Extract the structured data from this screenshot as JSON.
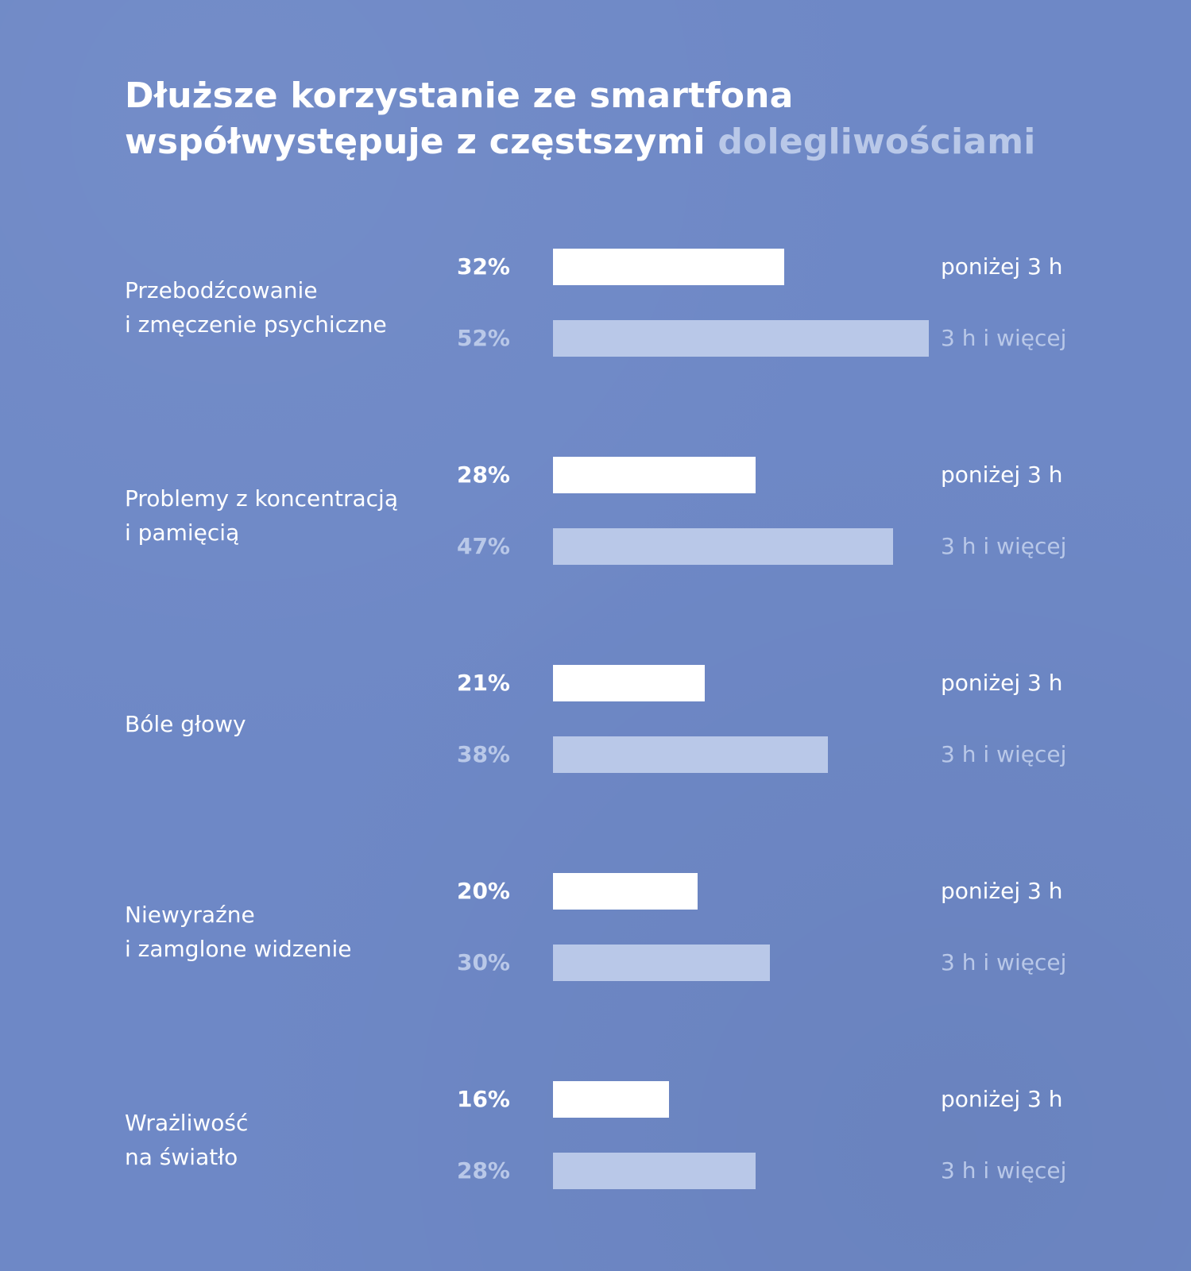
{
  "title": {
    "line1": "Dłuższe korzystanie ze smartfona",
    "line2_a": "współwystępuje z częstszymi",
    "line2_b": "dolegliwościami"
  },
  "colors": {
    "background": "#6e88c6",
    "series_below": "#ffffff",
    "series_above": "#b9c8e8"
  },
  "chart_data": {
    "type": "bar",
    "orientation": "horizontal",
    "title": "Dłuższe korzystanie ze smartfona współwystępuje z częstszymi dolegliwościami",
    "categories": [
      "Przebodźcowanie\ni  zmęczenie psychiczne",
      "Problemy z koncentracją\ni pamięcią",
      "Bóle głowy",
      "Niewyraźne\ni zamglone widzenie",
      "Wrażliwość\nna światło"
    ],
    "series": [
      {
        "name": "poniżej 3 h",
        "values": [
          32,
          28,
          21,
          20,
          16
        ],
        "labels": [
          "32%",
          "28%",
          "21%",
          "20%",
          "16%"
        ],
        "color": "#ffffff"
      },
      {
        "name": "3 h i więcej",
        "values": [
          52,
          47,
          38,
          30,
          28
        ],
        "labels": [
          "52%",
          "47%",
          "38%",
          "30%",
          "28%"
        ],
        "color": "#b9c8e8"
      }
    ],
    "xlim": [
      0,
      52
    ],
    "unit": "%",
    "grid": false,
    "legend": "inline-right"
  }
}
